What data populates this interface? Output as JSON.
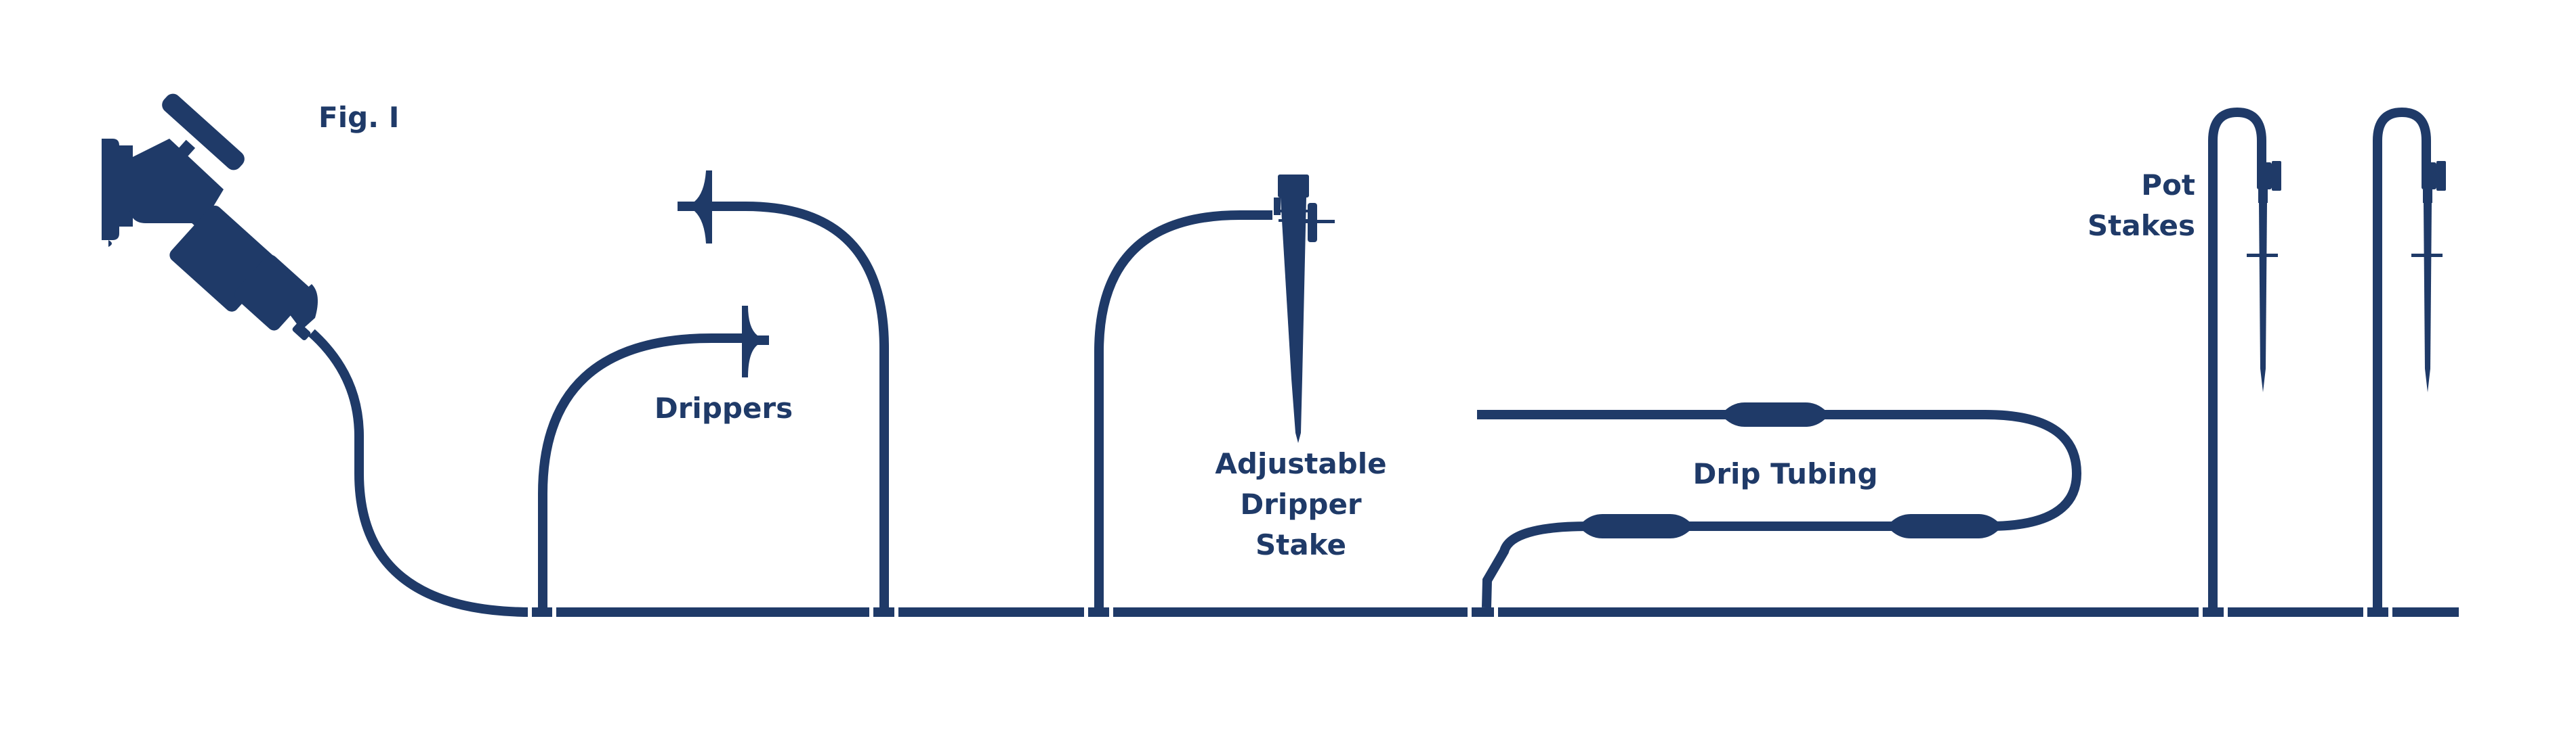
{
  "figure": {
    "fig_label": "Fig. I",
    "colors": {
      "ink": "#1f3a68",
      "background": "#ffffff"
    },
    "labels": {
      "drippers": "Drippers",
      "adjustable_line1": "Adjustable",
      "adjustable_line2": "Dripper",
      "adjustable_line3": "Stake",
      "drip_tubing": "Drip Tubing",
      "pot_line1": "Pot",
      "pot_line2": "Stakes"
    },
    "icons": [
      "hose-faucet-icon",
      "dripper-icon",
      "adjustable-dripper-stake-icon",
      "inline-emitter-icon",
      "pot-stake-icon",
      "tee-connector-icon"
    ]
  }
}
